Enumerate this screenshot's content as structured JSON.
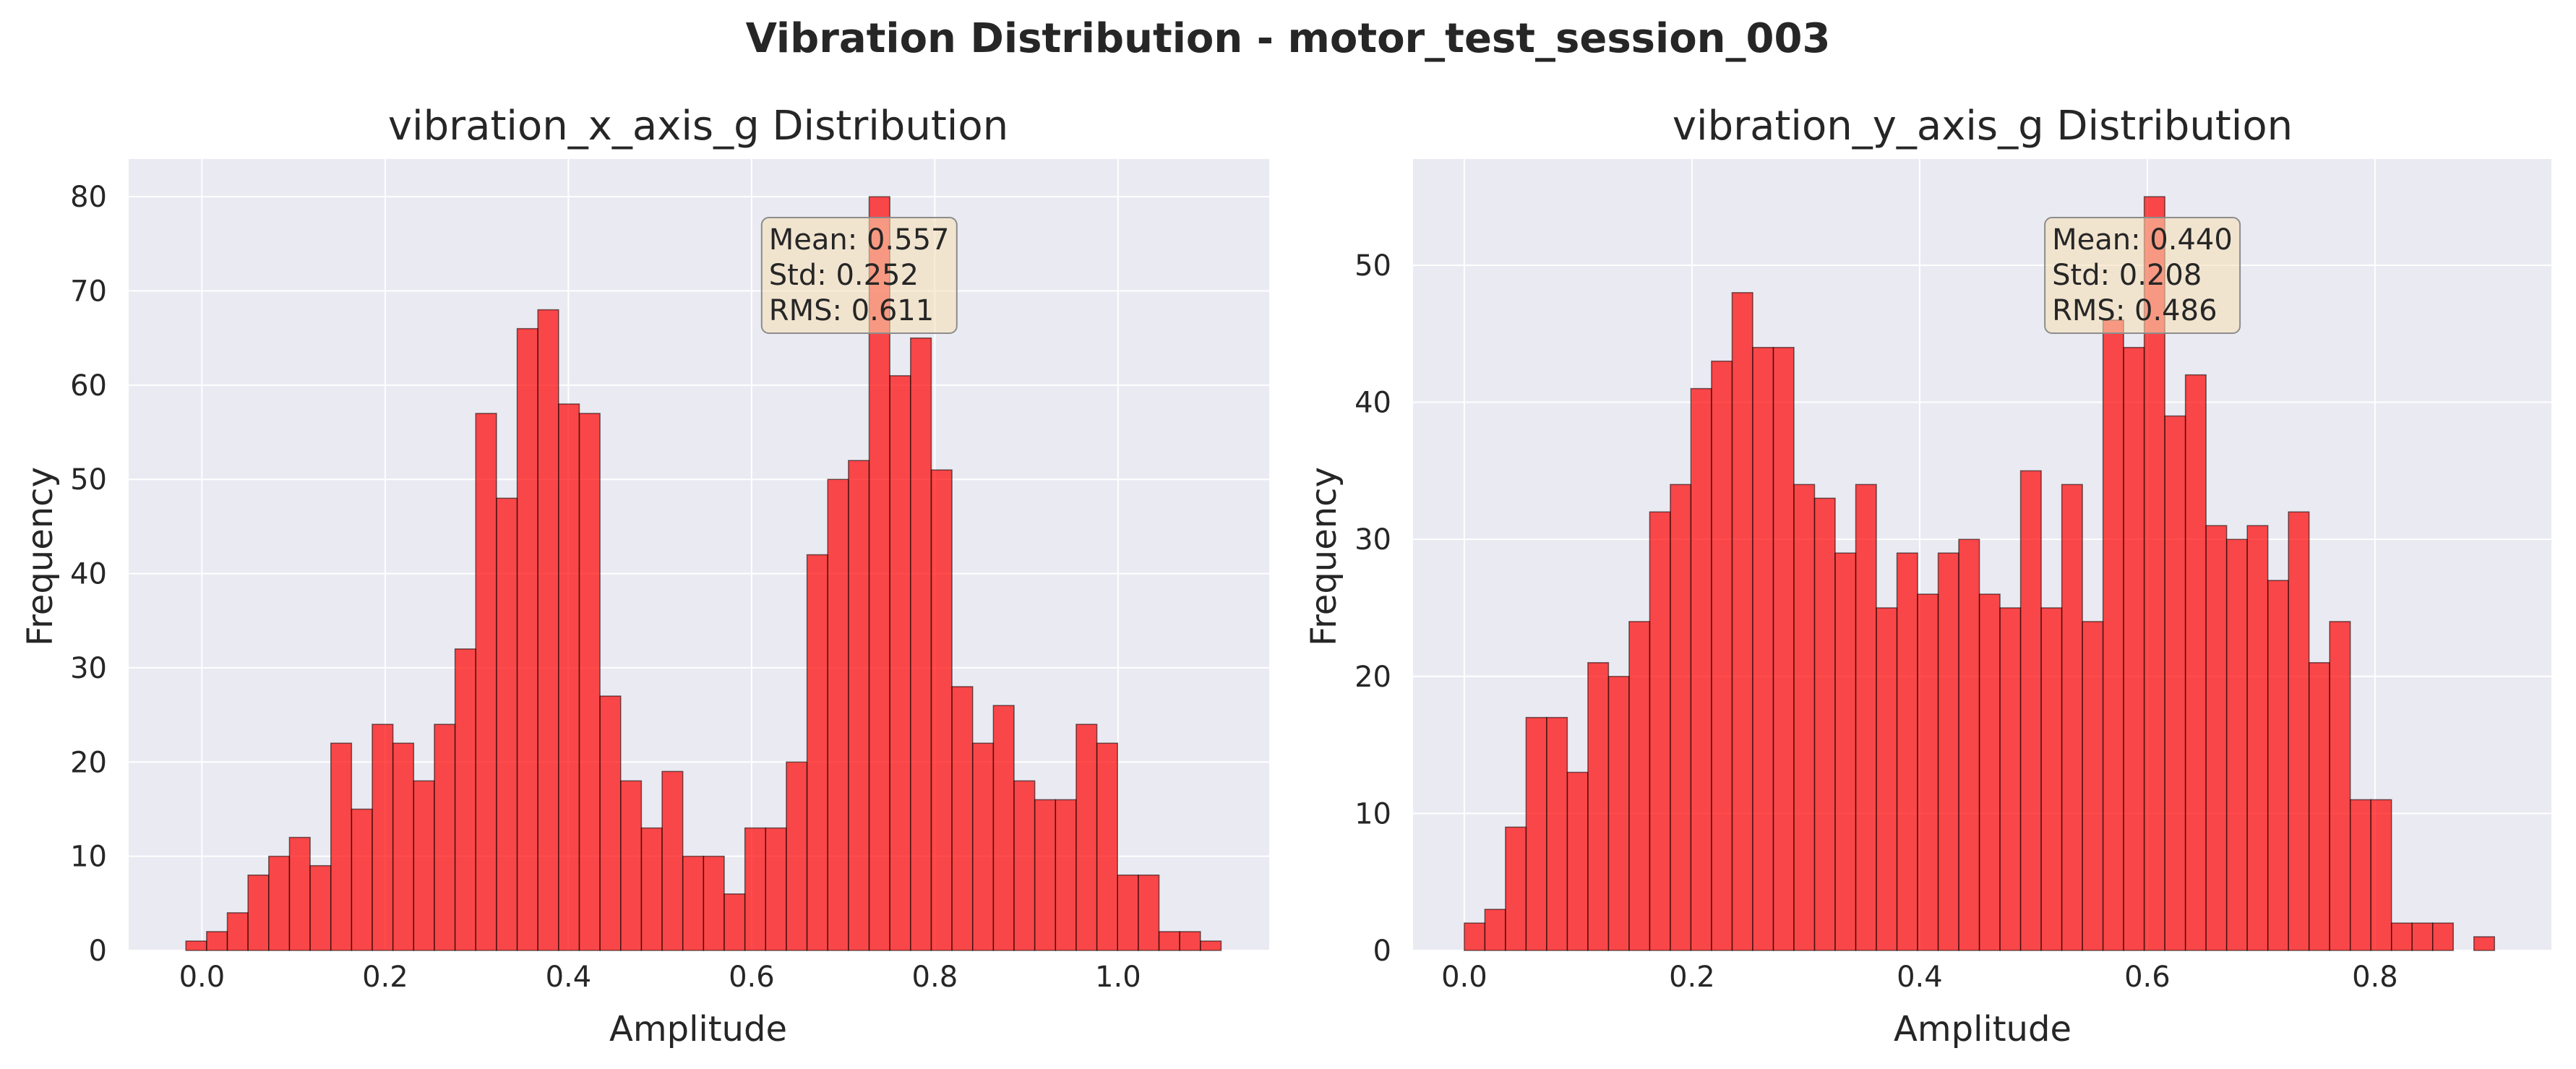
{
  "figure": {
    "title": "Vibration Distribution - motor_test_session_003"
  },
  "colors": {
    "bar_fill": "#ff0000",
    "bar_fill_opacity": 0.7,
    "bar_edge": "#000000",
    "plot_bg": "#eaeaf2",
    "grid": "#ffffff",
    "stats_box_fill": "#f5deb3",
    "stats_box_edge": "#8c8c8c"
  },
  "chart_data": [
    {
      "type": "bar",
      "title": "vibration_x_axis_g Distribution",
      "xlabel": "Amplitude",
      "ylabel": "Frequency",
      "x_ticks": [
        "0.0",
        "0.2",
        "0.4",
        "0.6",
        "0.8",
        "1.0"
      ],
      "y_ticks": [
        "0",
        "10",
        "20",
        "30",
        "40",
        "50",
        "60",
        "70",
        "80"
      ],
      "xlim": [
        -0.08,
        1.165
      ],
      "ylim": [
        0,
        84
      ],
      "grid": true,
      "bin_start": -0.0175,
      "bin_width": 0.0226,
      "values": [
        1,
        2,
        4,
        8,
        10,
        12,
        9,
        22,
        15,
        24,
        22,
        18,
        24,
        32,
        57,
        48,
        66,
        68,
        58,
        57,
        27,
        18,
        13,
        19,
        10,
        10,
        6,
        13,
        13,
        20,
        42,
        50,
        52,
        80,
        61,
        65,
        51,
        28,
        22,
        26,
        18,
        16,
        16,
        24,
        22,
        8,
        8,
        2,
        2,
        1
      ],
      "stats": [
        "Mean: 0.557",
        "Std: 0.252",
        "RMS: 0.611"
      ],
      "stats_position": "top-right"
    },
    {
      "type": "bar",
      "title": "vibration_y_axis_g Distribution",
      "xlabel": "Amplitude",
      "ylabel": "Frequency",
      "x_ticks": [
        "0.0",
        "0.2",
        "0.4",
        "0.6",
        "0.8"
      ],
      "y_ticks": [
        "0",
        "10",
        "20",
        "30",
        "40",
        "50"
      ],
      "xlim": [
        -0.045,
        0.955
      ],
      "ylim": [
        0,
        57.75
      ],
      "grid": true,
      "bin_start": 0.0,
      "bin_width": 0.0181,
      "values": [
        2,
        3,
        9,
        17,
        17,
        13,
        21,
        20,
        24,
        32,
        34,
        41,
        43,
        48,
        44,
        44,
        34,
        33,
        29,
        34,
        25,
        29,
        26,
        29,
        30,
        26,
        25,
        35,
        25,
        34,
        24,
        46,
        44,
        55,
        39,
        42,
        31,
        30,
        31,
        27,
        32,
        21,
        24,
        11,
        11,
        2,
        2,
        2,
        0,
        1
      ],
      "stats": [
        "Mean: 0.440",
        "Std: 0.208",
        "RMS: 0.486"
      ],
      "stats_position": "top-right"
    }
  ]
}
